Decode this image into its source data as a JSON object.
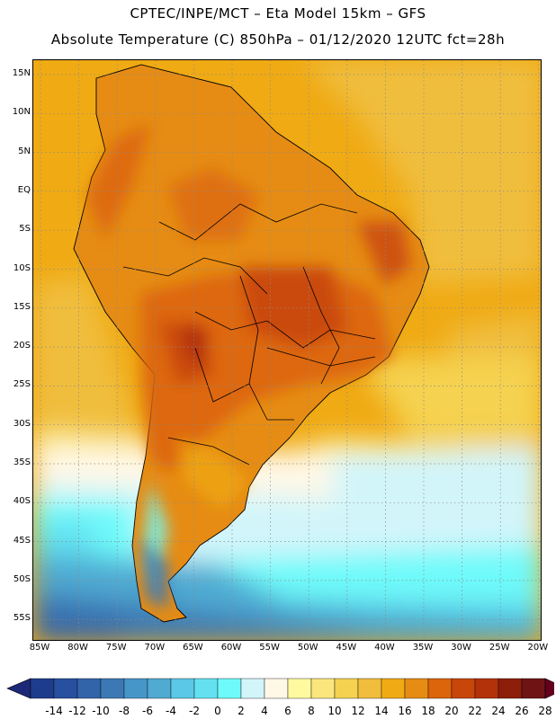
{
  "header": {
    "line1": "CPTEC/INPE/MCT –  Eta Model 15km – GFS",
    "line2": "Absolute Temperature (C) 850hPa – 01/12/2020 12UTC fct=28h"
  },
  "map": {
    "lat_labels": [
      "15N",
      "10N",
      "5N",
      "EQ",
      "5S",
      "10S",
      "15S",
      "20S",
      "25S",
      "30S",
      "35S",
      "40S",
      "45S",
      "50S",
      "55S"
    ],
    "lon_labels": [
      "85W",
      "80W",
      "75W",
      "70W",
      "65W",
      "60W",
      "55W",
      "50W",
      "45W",
      "40W",
      "35W",
      "30W",
      "25W",
      "20W"
    ],
    "grid": "dotted"
  },
  "colorbar": {
    "labels": [
      "-14",
      "-12",
      "-10",
      "-8",
      "-6",
      "-4",
      "-2",
      "0",
      "2",
      "4",
      "6",
      "8",
      "10",
      "12",
      "14",
      "16",
      "18",
      "20",
      "22",
      "24",
      "26",
      "28"
    ],
    "colors": [
      "#1e3c8c",
      "#2850a0",
      "#3264aa",
      "#3c78b4",
      "#4696c8",
      "#50aad2",
      "#5ac8e6",
      "#64e1f0",
      "#6efafa",
      "#d2f5fa",
      "#fff8e6",
      "#fffaa0",
      "#fae67d",
      "#f5d250",
      "#f0be3c",
      "#f0aa14",
      "#e68c14",
      "#dc640a",
      "#c8460a",
      "#b4320a",
      "#8c1e0a",
      "#6e1414"
    ],
    "under_color": "#1e2878",
    "over_color": "#64001e"
  }
}
